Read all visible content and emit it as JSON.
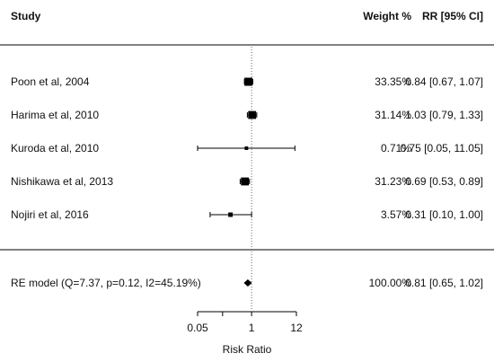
{
  "chart_data": {
    "type": "forest",
    "headers": {
      "study": "Study",
      "weight": "Weight %",
      "rr": "RR [95% CI]"
    },
    "xlabel": "Risk Ratio",
    "x_scale": "log",
    "xticks": [
      0.05,
      1,
      12
    ],
    "xtick_labels": [
      "0.05",
      "1",
      "12"
    ],
    "minor_ticks": [
      0.2
    ],
    "xlim": [
      0.05,
      12
    ],
    "reference_line": 1,
    "studies": [
      {
        "label": "Poon et al, 2004",
        "rr": 0.84,
        "ci": [
          0.67,
          1.07
        ],
        "weight": 33.35,
        "weight_text": "33.35%",
        "rr_text": "0.84 [0.67,  1.07]"
      },
      {
        "label": "Harima et al, 2010",
        "rr": 1.03,
        "ci": [
          0.79,
          1.33
        ],
        "weight": 31.14,
        "weight_text": "31.14%",
        "rr_text": "1.03 [0.79,  1.33]"
      },
      {
        "label": "Kuroda et al, 2010",
        "rr": 0.75,
        "ci": [
          0.05,
          11.05
        ],
        "weight": 0.71,
        "weight_text": "0.71%",
        "rr_text": "0.75 [0.05, 11.05]"
      },
      {
        "label": "Nishikawa et al, 2013",
        "rr": 0.69,
        "ci": [
          0.53,
          0.89
        ],
        "weight": 31.23,
        "weight_text": "31.23%",
        "rr_text": "0.69 [0.53,  0.89]"
      },
      {
        "label": "Nojiri et al, 2016",
        "rr": 0.31,
        "ci": [
          0.1,
          1.0
        ],
        "weight": 3.57,
        "weight_text": "3.57%",
        "rr_text": "0.31 [0.10,  1.00]"
      }
    ],
    "summary": {
      "label": "RE model (Q=7.37, p=0.12, I2=45.19%)",
      "rr": 0.81,
      "ci": [
        0.65,
        1.02
      ],
      "weight_text": "100.00%",
      "rr_text": "0.81 [0.65,  1.02]"
    }
  }
}
